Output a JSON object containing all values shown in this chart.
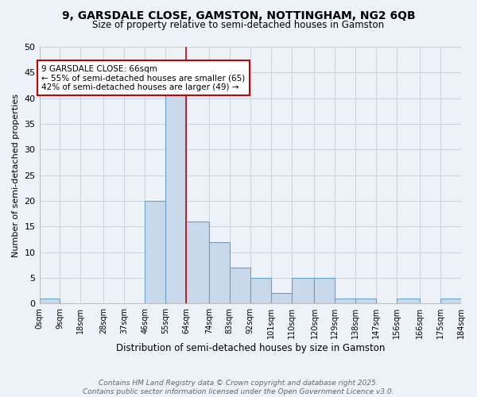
{
  "title_line1": "9, GARSDALE CLOSE, GAMSTON, NOTTINGHAM, NG2 6QB",
  "title_line2": "Size of property relative to semi-detached houses in Gamston",
  "xlabel": "Distribution of semi-detached houses by size in Gamston",
  "ylabel": "Number of semi-detached properties",
  "bin_edges": [
    0,
    9,
    18,
    28,
    37,
    46,
    55,
    64,
    74,
    83,
    92,
    101,
    110,
    120,
    129,
    138,
    147,
    156,
    166,
    175,
    184
  ],
  "bar_heights": [
    1,
    0,
    0,
    0,
    0,
    20,
    42,
    16,
    12,
    7,
    5,
    2,
    5,
    5,
    1,
    1,
    0,
    1,
    0,
    1
  ],
  "bar_color": "#c9d9ec",
  "bar_edge_color": "#6a9fc8",
  "bar_edge_width": 0.8,
  "tick_labels": [
    "0sqm",
    "9sqm",
    "18sqm",
    "28sqm",
    "37sqm",
    "46sqm",
    "55sqm",
    "64sqm",
    "74sqm",
    "83sqm",
    "92sqm",
    "101sqm",
    "110sqm",
    "120sqm",
    "129sqm",
    "138sqm",
    "147sqm",
    "156sqm",
    "166sqm",
    "175sqm",
    "184sqm"
  ],
  "ylim": [
    0,
    50
  ],
  "yticks": [
    0,
    5,
    10,
    15,
    20,
    25,
    30,
    35,
    40,
    45,
    50
  ],
  "property_line_x": 64,
  "property_line_color": "#cc0000",
  "annotation_text": "9 GARSDALE CLOSE: 66sqm\n← 55% of semi-detached houses are smaller (65)\n42% of semi-detached houses are larger (49) →",
  "annotation_box_color": "#ffffff",
  "annotation_box_edge_color": "#cc0000",
  "footnote_line1": "Contains HM Land Registry data © Crown copyright and database right 2025.",
  "footnote_line2": "Contains public sector information licensed under the Open Government Licence v3.0.",
  "grid_color": "#c8d4e0",
  "background_color": "#edf2f9",
  "title1_fontsize": 10,
  "title2_fontsize": 8.5,
  "annotation_fontsize": 7.5,
  "tick_fontsize": 7,
  "ylabel_fontsize": 8,
  "xlabel_fontsize": 8.5,
  "footnote_fontsize": 6.5
}
